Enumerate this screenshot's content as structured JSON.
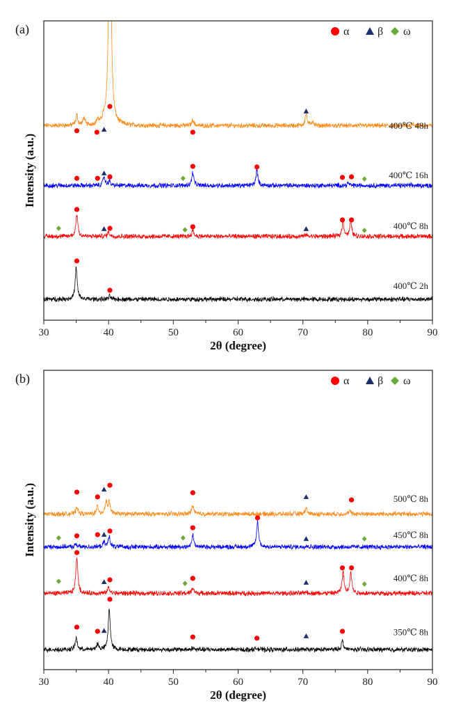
{
  "chart_data": [
    {
      "type": "line",
      "panel_label": "(a)",
      "xlabel": "2θ (degree)",
      "ylabel": "Intensity (a.u.)",
      "xlim": [
        30,
        90
      ],
      "ylim": [
        0,
        100
      ],
      "xticks": [
        30,
        40,
        50,
        60,
        70,
        80,
        90
      ],
      "grid": false,
      "legend": {
        "placement": "top-right",
        "entries": [
          {
            "symbol": "circle",
            "label": "α",
            "color": "#FF0000"
          },
          {
            "symbol": "triangle",
            "label": "β",
            "color": "#1B2F6E"
          },
          {
            "symbol": "diamond",
            "label": "ω",
            "color": "#6AAA3A"
          }
        ]
      },
      "series": [
        {
          "name": "400℃ 48h",
          "color": "#FF8C1A",
          "baseline": 65,
          "label_y": 64,
          "peaks": [
            [
              35.1,
              3.5
            ],
            [
              36.2,
              2.5
            ],
            [
              38.3,
              1.5
            ],
            [
              39.2,
              1.5
            ],
            [
              40.2,
              80
            ],
            [
              53.0,
              2
            ],
            [
              70.5,
              4
            ],
            [
              71.5,
              1.5
            ],
            [
              87.0,
              0.8
            ]
          ],
          "markers": {
            "alpha": [
              [
                35.1,
                63.3
              ],
              [
                38.2,
                62.8
              ],
              [
                40.2,
                71.4
              ],
              [
                53.0,
                62.8
              ]
            ],
            "beta": [
              [
                39.3,
                63.7
              ],
              [
                70.5,
                69.8
              ]
            ],
            "omega": []
          }
        },
        {
          "name": "400℃ 16h",
          "color": "#0000FF",
          "baseline": 45,
          "label_y": 47.5,
          "peaks": [
            [
              39.3,
              3
            ],
            [
              40.1,
              1.5
            ],
            [
              53.0,
              4.4
            ],
            [
              62.9,
              5.2
            ],
            [
              77.0,
              0.8
            ]
          ],
          "markers": {
            "alpha": [
              [
                35.1,
                47.4
              ],
              [
                38.3,
                47.4
              ],
              [
                40.2,
                47.9
              ],
              [
                53.0,
                51.4
              ],
              [
                62.9,
                51.2
              ],
              [
                76.1,
                47.7
              ],
              [
                77.5,
                47.9
              ]
            ],
            "beta": [
              [
                39.3,
                49.1
              ]
            ],
            "omega": [
              [
                51.5,
                47.4
              ],
              [
                79.5,
                47.2
              ]
            ]
          }
        },
        {
          "name": "400℃ 8h",
          "color": "#FF0000",
          "baseline": 28,
          "label_y": 30.5,
          "peaks": [
            [
              35.1,
              7.5
            ],
            [
              40.0,
              1.5
            ],
            [
              53.0,
              2
            ],
            [
              70.5,
              0.6
            ],
            [
              76.2,
              5
            ],
            [
              77.4,
              5
            ]
          ],
          "markers": {
            "alpha": [
              [
                35.1,
                37
              ],
              [
                40.2,
                30.7
              ],
              [
                53.0,
                31.2
              ],
              [
                76.1,
                33.5
              ],
              [
                77.5,
                33.5
              ]
            ],
            "beta": [
              [
                39.3,
                30.5
              ],
              [
                70.5,
                30.5
              ]
            ],
            "omega": [
              [
                32.3,
                30.7
              ],
              [
                51.8,
                30.2
              ],
              [
                79.5,
                30
              ]
            ]
          }
        },
        {
          "name": "400℃ 2h",
          "color": "#000000",
          "baseline": 7,
          "label_y": 10.5,
          "peaks": [
            [
              35.0,
              10.7
            ],
            [
              40.2,
              1
            ]
          ],
          "markers": {
            "alpha": [
              [
                35.1,
                19.8
              ],
              [
                40.2,
                10
              ]
            ],
            "beta": [],
            "omega": []
          }
        }
      ]
    },
    {
      "type": "line",
      "panel_label": "(b)",
      "xlabel": "2θ (degree)",
      "ylabel": "Intensity (a.u.)",
      "xlim": [
        30,
        90
      ],
      "ylim": [
        0,
        100
      ],
      "xticks": [
        30,
        40,
        50,
        60,
        70,
        80,
        90
      ],
      "grid": false,
      "legend": {
        "placement": "top-right",
        "entries": [
          {
            "symbol": "circle",
            "label": "α",
            "color": "#FF0000"
          },
          {
            "symbol": "triangle",
            "label": "β",
            "color": "#1B2F6E"
          },
          {
            "symbol": "diamond",
            "label": "ω",
            "color": "#6AAA3A"
          }
        ]
      },
      "series": [
        {
          "name": "500℃ 8h",
          "color": "#FF8C1A",
          "baseline": 52,
          "label_y": 56,
          "peaks": [
            [
              35.1,
              2.5
            ],
            [
              38.3,
              2.5
            ],
            [
              39.6,
              4
            ],
            [
              40.1,
              4
            ],
            [
              53.0,
              3
            ],
            [
              70.5,
              2
            ],
            [
              77.2,
              1
            ]
          ],
          "markers": {
            "alpha": [
              [
                35.1,
                59.3
              ],
              [
                38.3,
                57.7
              ],
              [
                40.2,
                61.6
              ],
              [
                53.0,
                59.1
              ],
              [
                77.5,
                56.7
              ]
            ],
            "beta": [
              [
                39.3,
                60.2
              ],
              [
                70.5,
                57.7
              ]
            ],
            "omega": []
          }
        },
        {
          "name": "450℃ 8h",
          "color": "#0000FF",
          "baseline": 41,
          "label_y": 44,
          "peaks": [
            [
              35.0,
              1
            ],
            [
              39.3,
              1.5
            ],
            [
              40.1,
              3.5
            ],
            [
              53.0,
              4
            ],
            [
              63.0,
              8.5
            ],
            [
              70.5,
              0.5
            ]
          ],
          "markers": {
            "alpha": [
              [
                35.1,
                44.7
              ],
              [
                38.3,
                45.1
              ],
              [
                40.2,
                46.3
              ],
              [
                53.0,
                47.4
              ],
              [
                63.0,
                50.7
              ]
            ],
            "beta": [
              [
                39.3,
                45.1
              ],
              [
                70.5,
                43.7
              ]
            ],
            "omega": [
              [
                32.3,
                44
              ],
              [
                51.5,
                44
              ],
              [
                79.5,
                43.7
              ]
            ]
          }
        },
        {
          "name": "400℃ 8h",
          "color": "#FF0000",
          "baseline": 25.5,
          "label_y": 29.5,
          "peaks": [
            [
              35.1,
              12.5
            ],
            [
              40.0,
              2
            ],
            [
              53.0,
              2
            ],
            [
              70.5,
              0.6
            ],
            [
              76.2,
              7
            ],
            [
              77.4,
              7
            ]
          ],
          "markers": {
            "alpha": [
              [
                35.1,
                39.1
              ],
              [
                40.2,
                30
              ],
              [
                53.0,
                30.5
              ],
              [
                76.1,
                34
              ],
              [
                77.5,
                34
              ]
            ],
            "beta": [
              [
                39.3,
                29.3
              ],
              [
                70.5,
                29.1
              ]
            ],
            "omega": [
              [
                32.3,
                29.5
              ],
              [
                51.8,
                28.8
              ],
              [
                79.5,
                28.6
              ]
            ]
          }
        },
        {
          "name": "350℃ 8h",
          "color": "#000000",
          "baseline": 6.7,
          "label_y": 11.5,
          "peaks": [
            [
              35.0,
              4
            ],
            [
              38.3,
              2
            ],
            [
              40.1,
              14
            ],
            [
              53.0,
              0.6
            ],
            [
              62.9,
              0.6
            ],
            [
              76.1,
              3
            ]
          ],
          "markers": {
            "alpha": [
              [
                35.1,
                14.2
              ],
              [
                38.3,
                12.8
              ],
              [
                40.2,
                23.5
              ],
              [
                53.0,
                10.9
              ],
              [
                62.9,
                10.5
              ],
              [
                76.1,
                12.8
              ]
            ],
            "beta": [
              [
                39.3,
                13
              ],
              [
                70.5,
                11.2
              ]
            ],
            "omega": []
          }
        }
      ]
    }
  ]
}
